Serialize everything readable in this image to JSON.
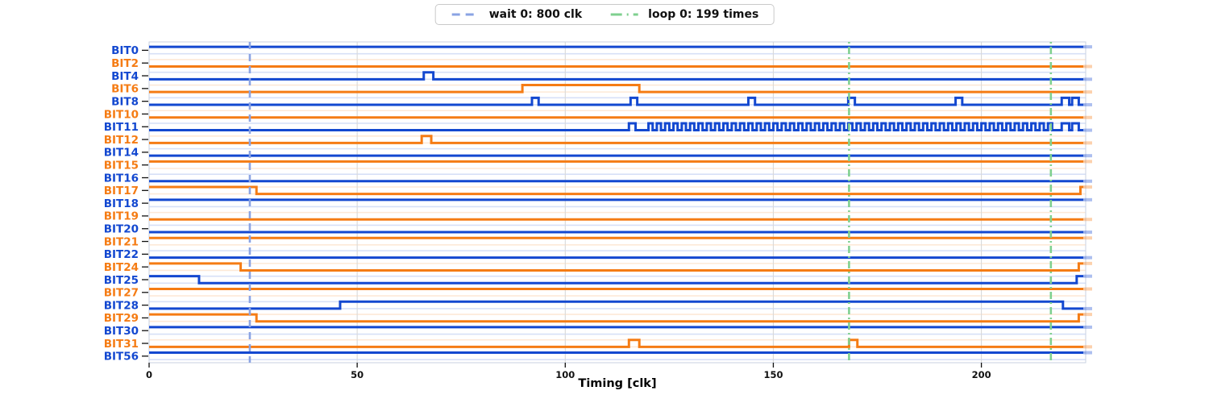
{
  "chart_data": {
    "type": "digital_timing",
    "title": "",
    "xlabel": "Timing [clk]",
    "axis": {
      "x_ticks": [
        0,
        50,
        100,
        150,
        200
      ],
      "x_min": 0,
      "x_max": 224.5
    },
    "colors": {
      "blue": "#1348d0",
      "orange": "#f57c14",
      "wait_marker": "#8aa3e3",
      "loop_marker": "#7fd08f",
      "grid_gray": "#d9d9d9",
      "spine": "#c9d2e2",
      "tick_text": "#111111"
    },
    "markers": {
      "wait": {
        "label": "wait 0: 800 clk",
        "positions": [
          24.2
        ],
        "style": "dashed"
      },
      "loop": {
        "label": "loop 0: 199 times",
        "positions": [
          168.2,
          216.7
        ],
        "style": "dashdot"
      }
    },
    "signals": [
      {
        "name": "BIT0",
        "color": "blue",
        "steps": [
          [
            0,
            1
          ]
        ]
      },
      {
        "name": "BIT2",
        "color": "orange",
        "steps": [
          [
            0,
            0
          ]
        ]
      },
      {
        "name": "BIT4",
        "color": "blue",
        "steps": [
          [
            0,
            0
          ],
          [
            66,
            1
          ],
          [
            68.3,
            0
          ]
        ]
      },
      {
        "name": "BIT6",
        "color": "orange",
        "steps": [
          [
            0,
            0
          ],
          [
            89.7,
            1
          ],
          [
            117.8,
            0
          ]
        ]
      },
      {
        "name": "BIT8",
        "color": "blue",
        "steps": [
          [
            0,
            0
          ],
          [
            92,
            1
          ],
          [
            93.6,
            0
          ],
          [
            115.7,
            1
          ],
          [
            117.3,
            0
          ],
          [
            144,
            1
          ],
          [
            145.6,
            0
          ],
          [
            168,
            1
          ],
          [
            169.6,
            0
          ],
          [
            193.8,
            1
          ],
          [
            195.4,
            0
          ],
          [
            219.3,
            1
          ],
          [
            221.1,
            0
          ],
          [
            221.8,
            1
          ],
          [
            223.4,
            0
          ]
        ]
      },
      {
        "name": "BIT10",
        "color": "orange",
        "steps": [
          [
            0,
            0
          ]
        ]
      },
      {
        "name": "BIT11",
        "color": "blue",
        "steps": [
          [
            0,
            0
          ],
          [
            115.3,
            1
          ],
          [
            116.9,
            0
          ],
          [
            219.3,
            1
          ],
          [
            221.1,
            0
          ],
          [
            221.8,
            1
          ],
          [
            223.4,
            0
          ]
        ],
        "square": {
          "start": 120,
          "end": 216.6,
          "period": 2
        }
      },
      {
        "name": "BIT12",
        "color": "orange",
        "steps": [
          [
            0,
            0
          ],
          [
            65.5,
            1
          ],
          [
            67.8,
            0
          ]
        ]
      },
      {
        "name": "BIT14",
        "color": "blue",
        "steps": [
          [
            0,
            0
          ]
        ]
      },
      {
        "name": "BIT15",
        "color": "orange",
        "steps": [
          [
            0,
            1
          ]
        ]
      },
      {
        "name": "BIT16",
        "color": "blue",
        "steps": [
          [
            0,
            0
          ]
        ]
      },
      {
        "name": "BIT17",
        "color": "orange",
        "steps": [
          [
            0,
            1
          ],
          [
            25.8,
            0
          ],
          [
            223.8,
            1
          ]
        ]
      },
      {
        "name": "BIT18",
        "color": "blue",
        "steps": [
          [
            0,
            1
          ]
        ]
      },
      {
        "name": "BIT19",
        "color": "orange",
        "steps": [
          [
            0,
            0
          ]
        ]
      },
      {
        "name": "BIT20",
        "color": "blue",
        "steps": [
          [
            0,
            0
          ]
        ]
      },
      {
        "name": "BIT21",
        "color": "orange",
        "steps": [
          [
            0,
            1
          ]
        ]
      },
      {
        "name": "BIT22",
        "color": "blue",
        "steps": [
          [
            0,
            0
          ]
        ]
      },
      {
        "name": "BIT24",
        "color": "orange",
        "steps": [
          [
            0,
            1
          ],
          [
            22,
            0
          ],
          [
            223.4,
            1
          ]
        ]
      },
      {
        "name": "BIT25",
        "color": "blue",
        "steps": [
          [
            0,
            1
          ],
          [
            12,
            0
          ],
          [
            222.9,
            1
          ]
        ]
      },
      {
        "name": "BIT27",
        "color": "orange",
        "steps": [
          [
            0,
            1
          ]
        ]
      },
      {
        "name": "BIT28",
        "color": "blue",
        "steps": [
          [
            0,
            0
          ],
          [
            45.9,
            1
          ],
          [
            219.6,
            0
          ]
        ]
      },
      {
        "name": "BIT29",
        "color": "orange",
        "steps": [
          [
            0,
            1
          ],
          [
            25.8,
            0
          ],
          [
            223.4,
            1
          ]
        ]
      },
      {
        "name": "BIT30",
        "color": "blue",
        "steps": [
          [
            0,
            1
          ]
        ]
      },
      {
        "name": "BIT31",
        "color": "orange",
        "steps": [
          [
            0,
            0
          ],
          [
            115.3,
            1
          ],
          [
            117.8,
            0
          ],
          [
            168.2,
            1
          ],
          [
            170.2,
            0
          ]
        ]
      },
      {
        "name": "BIT56",
        "color": "blue",
        "steps": [
          [
            0,
            1
          ]
        ]
      }
    ]
  }
}
